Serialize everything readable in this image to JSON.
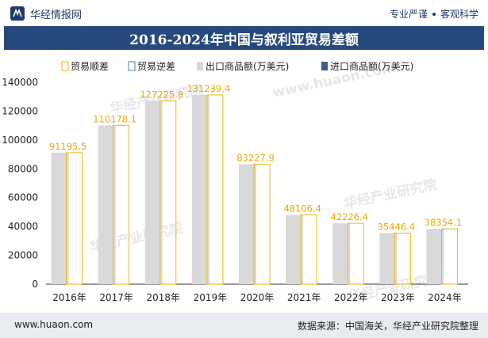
{
  "header": {
    "brand": "华经情报网",
    "slogan_left": "专业严谨",
    "slogan_right": "客观科学"
  },
  "title": "2016-2024年中国与叙利亚贸易差额",
  "footer": {
    "website": "www.huaon.com",
    "source": "数据来源：中国海关，华经产业研究院整理"
  },
  "watermarks": [
    "华经产业研究院",
    "www.huaon.com"
  ],
  "colors": {
    "title_bg": "#264a7d",
    "export_bar": "#d9d9d9",
    "import_bar": "#3e5f8a",
    "surplus_outline": "#f5b800",
    "deficit_outline": "#5b7aa3"
  },
  "chart_data": {
    "type": "bar",
    "categories": [
      "2016年",
      "2017年",
      "2018年",
      "2019年",
      "2020年",
      "2021年",
      "2022年",
      "2023年",
      "2024年"
    ],
    "series": [
      {
        "name": "贸易顺差",
        "values": [
          91195.5,
          110178.1,
          127225.8,
          131239.4,
          83227.9,
          48106.4,
          42226.4,
          35446.4,
          38354.1
        ]
      },
      {
        "name": "贸易逆差",
        "values": [
          0,
          0,
          0,
          0,
          0,
          0,
          0,
          0,
          0
        ]
      },
      {
        "name": "出口商品额(万美元)",
        "values": [
          91195.5,
          110178.1,
          127225.8,
          131239.4,
          83227.9,
          48106.4,
          42226.4,
          35446.4,
          38354.1
        ]
      },
      {
        "name": "进口商品额(万美元)",
        "values": [
          300,
          300,
          300,
          300,
          300,
          300,
          300,
          300,
          300
        ]
      }
    ],
    "data_labels": [
      "91195.5",
      "110178.1",
      "127225.8",
      "131239.4",
      "83227.9",
      "48106.4",
      "42226.4",
      "35446.4",
      "38354.1"
    ],
    "yticks": [
      "0",
      "20000",
      "40000",
      "60000",
      "80000",
      "100000",
      "120000",
      "140000"
    ],
    "ylim": [
      0,
      140000
    ],
    "legend_position": "top"
  }
}
